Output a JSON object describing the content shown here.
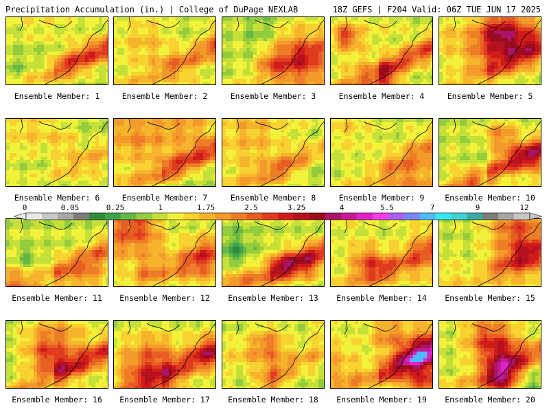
{
  "header": {
    "title": "Precipitation Accumulation (in.) | College of DuPage NEXLAB",
    "valid": "18Z GEFS | F204 Valid: 06Z TUE JUN 17 2025"
  },
  "members": [
    {
      "label": "Ensemble Member: 1"
    },
    {
      "label": "Ensemble Member: 2"
    },
    {
      "label": "Ensemble Member: 3"
    },
    {
      "label": "Ensemble Member: 4"
    },
    {
      "label": "Ensemble Member: 5"
    },
    {
      "label": "Ensemble Member: 6"
    },
    {
      "label": "Ensemble Member: 7"
    },
    {
      "label": "Ensemble Member: 8"
    },
    {
      "label": "Ensemble Member: 9"
    },
    {
      "label": "Ensemble Member: 10"
    },
    {
      "label": "Ensemble Member: 11"
    },
    {
      "label": "Ensemble Member: 12"
    },
    {
      "label": "Ensemble Member: 13"
    },
    {
      "label": "Ensemble Member: 14"
    },
    {
      "label": "Ensemble Member: 15"
    },
    {
      "label": "Ensemble Member: 16"
    },
    {
      "label": "Ensemble Member: 17"
    },
    {
      "label": "Ensemble Member: 18"
    },
    {
      "label": "Ensemble Member: 19"
    },
    {
      "label": "Ensemble Member: 20"
    }
  ],
  "colorbar": {
    "ticks": [
      "0",
      "0.05",
      "0.25",
      "1",
      "1.75",
      "2.5",
      "3.25",
      "4",
      "5.5",
      "7",
      "9",
      "12"
    ],
    "colors": [
      "#e8e8e8",
      "#c8c8c8",
      "#a8a8a8",
      "#7d7d7d",
      "#2e8b3d",
      "#3fa34a",
      "#63b846",
      "#93cc3c",
      "#c6e03a",
      "#f2f23a",
      "#f7d230",
      "#f6b42d",
      "#f39a2a",
      "#ee7d27",
      "#e85d22",
      "#e03a1f",
      "#d01b1b",
      "#b5111e",
      "#9a0b1e",
      "#a81468",
      "#c51a96",
      "#e022c8",
      "#f03ee8",
      "#b05cf0",
      "#7a86f6",
      "#4eb8f8",
      "#36e6f0",
      "#40d0d0",
      "#3caaa6",
      "#7c7c7c",
      "#a6a6a6",
      "#c6c6c6"
    ]
  }
}
